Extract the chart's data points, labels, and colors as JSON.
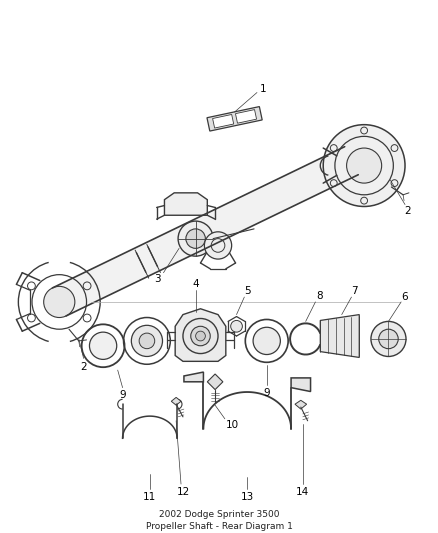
{
  "title": "2002 Dodge Sprinter 3500\nPropeller Shaft - Rear Diagram 1",
  "bg": "#ffffff",
  "lc": "#3a3a3a",
  "lfs": 7.5,
  "title_fs": 6.5
}
